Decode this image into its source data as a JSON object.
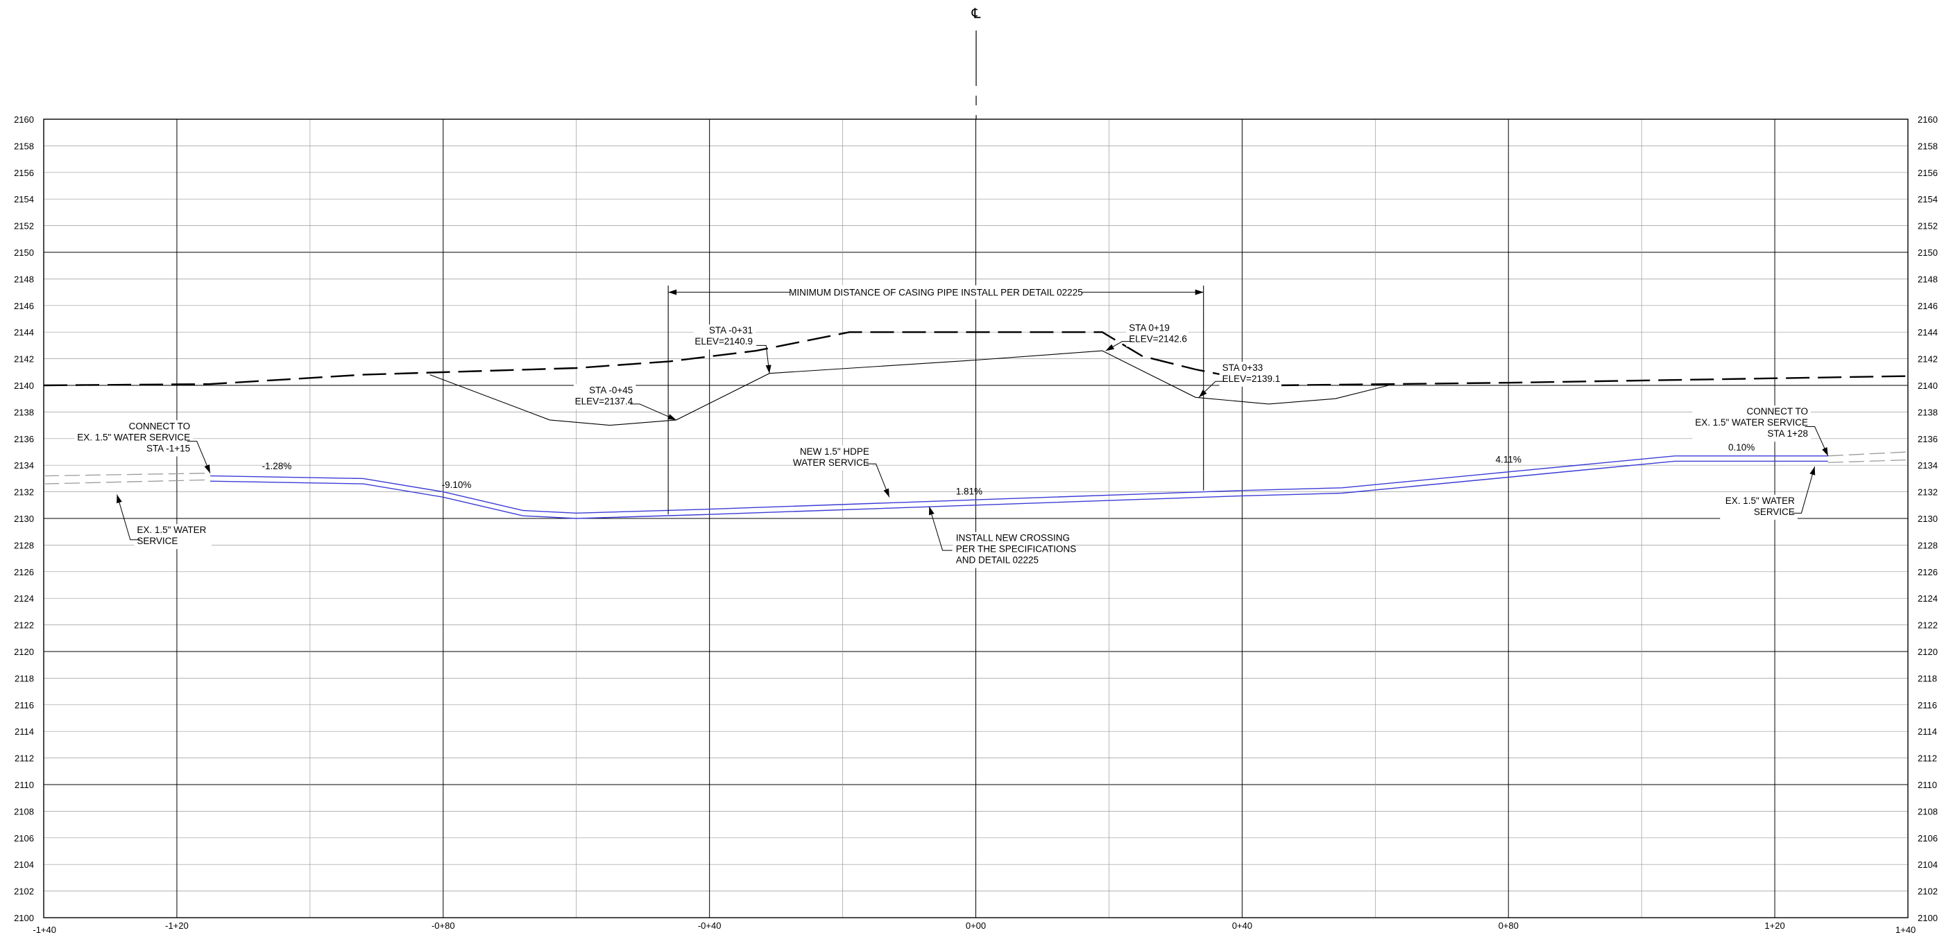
{
  "sheet": {
    "centerline_symbol": "℄",
    "y_axis": {
      "min": 2100,
      "max": 2160,
      "step": 2,
      "major_every": 10
    },
    "x_axis": {
      "min": -140,
      "max": 140,
      "labels": [
        "-1+40",
        "-1+20",
        "-0+80",
        "-0+40",
        "0+00",
        "0+40",
        "0+80",
        "1+20",
        "1+40"
      ]
    }
  },
  "chart_data": {
    "type": "line",
    "title": "",
    "xlabel": "",
    "ylabel": "",
    "xlim": [
      -140,
      140
    ],
    "ylim": [
      2100,
      2160
    ],
    "y_ticks": [
      2160,
      2158,
      2156,
      2154,
      2152,
      2150,
      2148,
      2146,
      2144,
      2142,
      2140,
      2138,
      2136,
      2134,
      2132,
      2130,
      2128,
      2126,
      2124,
      2122,
      2120,
      2118,
      2116,
      2114,
      2112,
      2110,
      2108,
      2106,
      2104,
      2102,
      2100
    ],
    "x_ticks": [
      {
        "x": -140,
        "label": "-1+40"
      },
      {
        "x": -120,
        "label": "-1+20"
      },
      {
        "x": -80,
        "label": "-0+80"
      },
      {
        "x": -40,
        "label": "-0+40"
      },
      {
        "x": 0,
        "label": "0+00"
      },
      {
        "x": 40,
        "label": "0+40"
      },
      {
        "x": 80,
        "label": "0+80"
      },
      {
        "x": 120,
        "label": "1+20"
      },
      {
        "x": 140,
        "label": "1+40"
      }
    ],
    "series": [
      {
        "key": "existing_ground",
        "style": "dashed",
        "points": [
          [
            -140,
            2140
          ],
          [
            -115,
            2140.1
          ],
          [
            -92,
            2140.8
          ],
          [
            -60,
            2141.3
          ],
          [
            -46,
            2141.8
          ],
          [
            -33,
            2142.6
          ],
          [
            -19,
            2144
          ],
          [
            19,
            2144
          ],
          [
            25,
            2142.2
          ],
          [
            33,
            2141.2
          ],
          [
            45,
            2140
          ],
          [
            80,
            2140.2
          ],
          [
            140,
            2140.7
          ]
        ]
      },
      {
        "key": "proposed_surface",
        "style": "solid",
        "points": [
          [
            -82,
            2140.8
          ],
          [
            -64,
            2137.4
          ],
          [
            -55,
            2137
          ],
          [
            -45,
            2137.4
          ],
          [
            -31,
            2140.9
          ],
          [
            0,
            2141.9
          ],
          [
            19,
            2142.6
          ],
          [
            33,
            2139.1
          ],
          [
            44,
            2138.6
          ],
          [
            54,
            2139
          ],
          [
            62,
            2140
          ]
        ]
      },
      {
        "key": "new_pipe_top",
        "style": "blue",
        "points": [
          [
            -115,
            2133.2
          ],
          [
            -92,
            2133
          ],
          [
            -80,
            2132
          ],
          [
            -68,
            2130.6
          ],
          [
            -60,
            2130.4
          ],
          [
            -40,
            2130.7
          ],
          [
            0,
            2131.4
          ],
          [
            40,
            2132.1
          ],
          [
            55,
            2132.3
          ],
          [
            80,
            2133.5
          ],
          [
            105,
            2134.7
          ],
          [
            128,
            2134.7
          ]
        ]
      },
      {
        "key": "new_pipe_bottom",
        "style": "blue",
        "points": [
          [
            -115,
            2132.8
          ],
          [
            -92,
            2132.6
          ],
          [
            -80,
            2131.6
          ],
          [
            -68,
            2130.2
          ],
          [
            -60,
            2130
          ],
          [
            -40,
            2130.3
          ],
          [
            0,
            2131
          ],
          [
            40,
            2131.7
          ],
          [
            55,
            2131.9
          ],
          [
            80,
            2133.1
          ],
          [
            105,
            2134.3
          ],
          [
            128,
            2134.3
          ]
        ]
      },
      {
        "key": "ex_service_left_top",
        "style": "grey-dashed",
        "points": [
          [
            -140,
            2133.2
          ],
          [
            -115,
            2133.4
          ]
        ]
      },
      {
        "key": "ex_service_left_bottom",
        "style": "grey-dashed",
        "points": [
          [
            -140,
            2132.6
          ],
          [
            -115,
            2132.9
          ]
        ]
      },
      {
        "key": "ex_service_right_top",
        "style": "grey-dashed",
        "points": [
          [
            128,
            2134.7
          ],
          [
            140,
            2135
          ]
        ]
      },
      {
        "key": "ex_service_right_bottom",
        "style": "grey-dashed",
        "points": [
          [
            128,
            2134.2
          ],
          [
            140,
            2134.4
          ]
        ]
      }
    ],
    "grades": [
      {
        "text": "-1.28%",
        "x": -105,
        "y": 2133.7
      },
      {
        "text": "-9.10%",
        "x": -78,
        "y": 2132.3
      },
      {
        "text": "1.81%",
        "x": -1,
        "y": 2131.8
      },
      {
        "text": "4.11%",
        "x": 80,
        "y": 2134.2
      },
      {
        "text": "0.10%",
        "x": 115,
        "y": 2135.1
      }
    ],
    "casing_dimension": {
      "x_start": -46.2,
      "x_end": 34.2,
      "y": 2147,
      "text": "MINIMUM DISTANCE OF CASING PIPE INSTALL PER DETAIL 02225"
    },
    "callouts": [
      {
        "lines": [
          "STA -0+31",
          "ELEV=2140.9"
        ],
        "anchor": "end",
        "tx": -33.5,
        "ty": 2143.9,
        "leader": [
          [
            -31.5,
            2143
          ],
          [
            -31,
            2140.9
          ]
        ]
      },
      {
        "lines": [
          "STA -0+45",
          "ELEV=2137.4"
        ],
        "anchor": "end",
        "tx": -51.5,
        "ty": 2139.4,
        "leader": [
          [
            -50.5,
            2138.6
          ],
          [
            -45,
            2137.4
          ]
        ]
      },
      {
        "lines": [
          "STA 0+19",
          "ELEV=2142.6"
        ],
        "anchor": "start",
        "tx": 23,
        "ty": 2144.1,
        "leader": [
          [
            22,
            2143.3
          ],
          [
            19.5,
            2142.6
          ]
        ]
      },
      {
        "lines": [
          "STA 0+33",
          "ELEV=2139.1"
        ],
        "anchor": "start",
        "tx": 37,
        "ty": 2141.1,
        "leader": [
          [
            36,
            2140.3
          ],
          [
            33.5,
            2139.1
          ]
        ]
      },
      {
        "lines": [
          "CONNECT TO",
          "EX. 1.5\" WATER SERVICE",
          "STA -1+15"
        ],
        "anchor": "end",
        "tx": -118,
        "ty": 2136.7,
        "leader": [
          [
            -117,
            2135.8
          ],
          [
            -115,
            2133.4
          ]
        ]
      },
      {
        "lines": [
          "EX. 1.5\" WATER",
          "SERVICE"
        ],
        "anchor": "start",
        "tx": -126,
        "ty": 2128.9,
        "leader": [
          [
            -127,
            2128.4
          ],
          [
            -129,
            2131.8
          ]
        ]
      },
      {
        "lines": [
          "NEW 1.5\" HDPE",
          "WATER SERVICE"
        ],
        "anchor": "end",
        "tx": -16,
        "ty": 2134.8,
        "leader": [
          [
            -15,
            2134.1
          ],
          [
            -13,
            2131.6
          ]
        ]
      },
      {
        "lines": [
          "INSTALL NEW CROSSING",
          "PER THE SPECIFICATIONS",
          "AND DETAIL 02225"
        ],
        "anchor": "start",
        "tx": -3,
        "ty": 2128.3,
        "leader": [
          [
            -5,
            2127.6
          ],
          [
            -7,
            2130.9
          ]
        ]
      },
      {
        "lines": [
          "CONNECT TO",
          "EX. 1.5\" WATER SERVICE",
          "STA 1+28"
        ],
        "anchor": "end",
        "tx": 125,
        "ty": 2137.8,
        "leader": [
          [
            126,
            2136.9
          ],
          [
            128,
            2134.7
          ]
        ]
      },
      {
        "lines": [
          "EX. 1.5\" WATER",
          "SERVICE"
        ],
        "anchor": "end",
        "tx": 123,
        "ty": 2131.1,
        "leader": [
          [
            124,
            2130.4
          ],
          [
            126,
            2133.9
          ]
        ]
      }
    ]
  },
  "colors": {
    "pipe": "#3b3bd6",
    "grid_minor": "#9a9a9a",
    "grid_major": "#000000",
    "existing_service": "#9a9a9a",
    "line": "#000000"
  }
}
